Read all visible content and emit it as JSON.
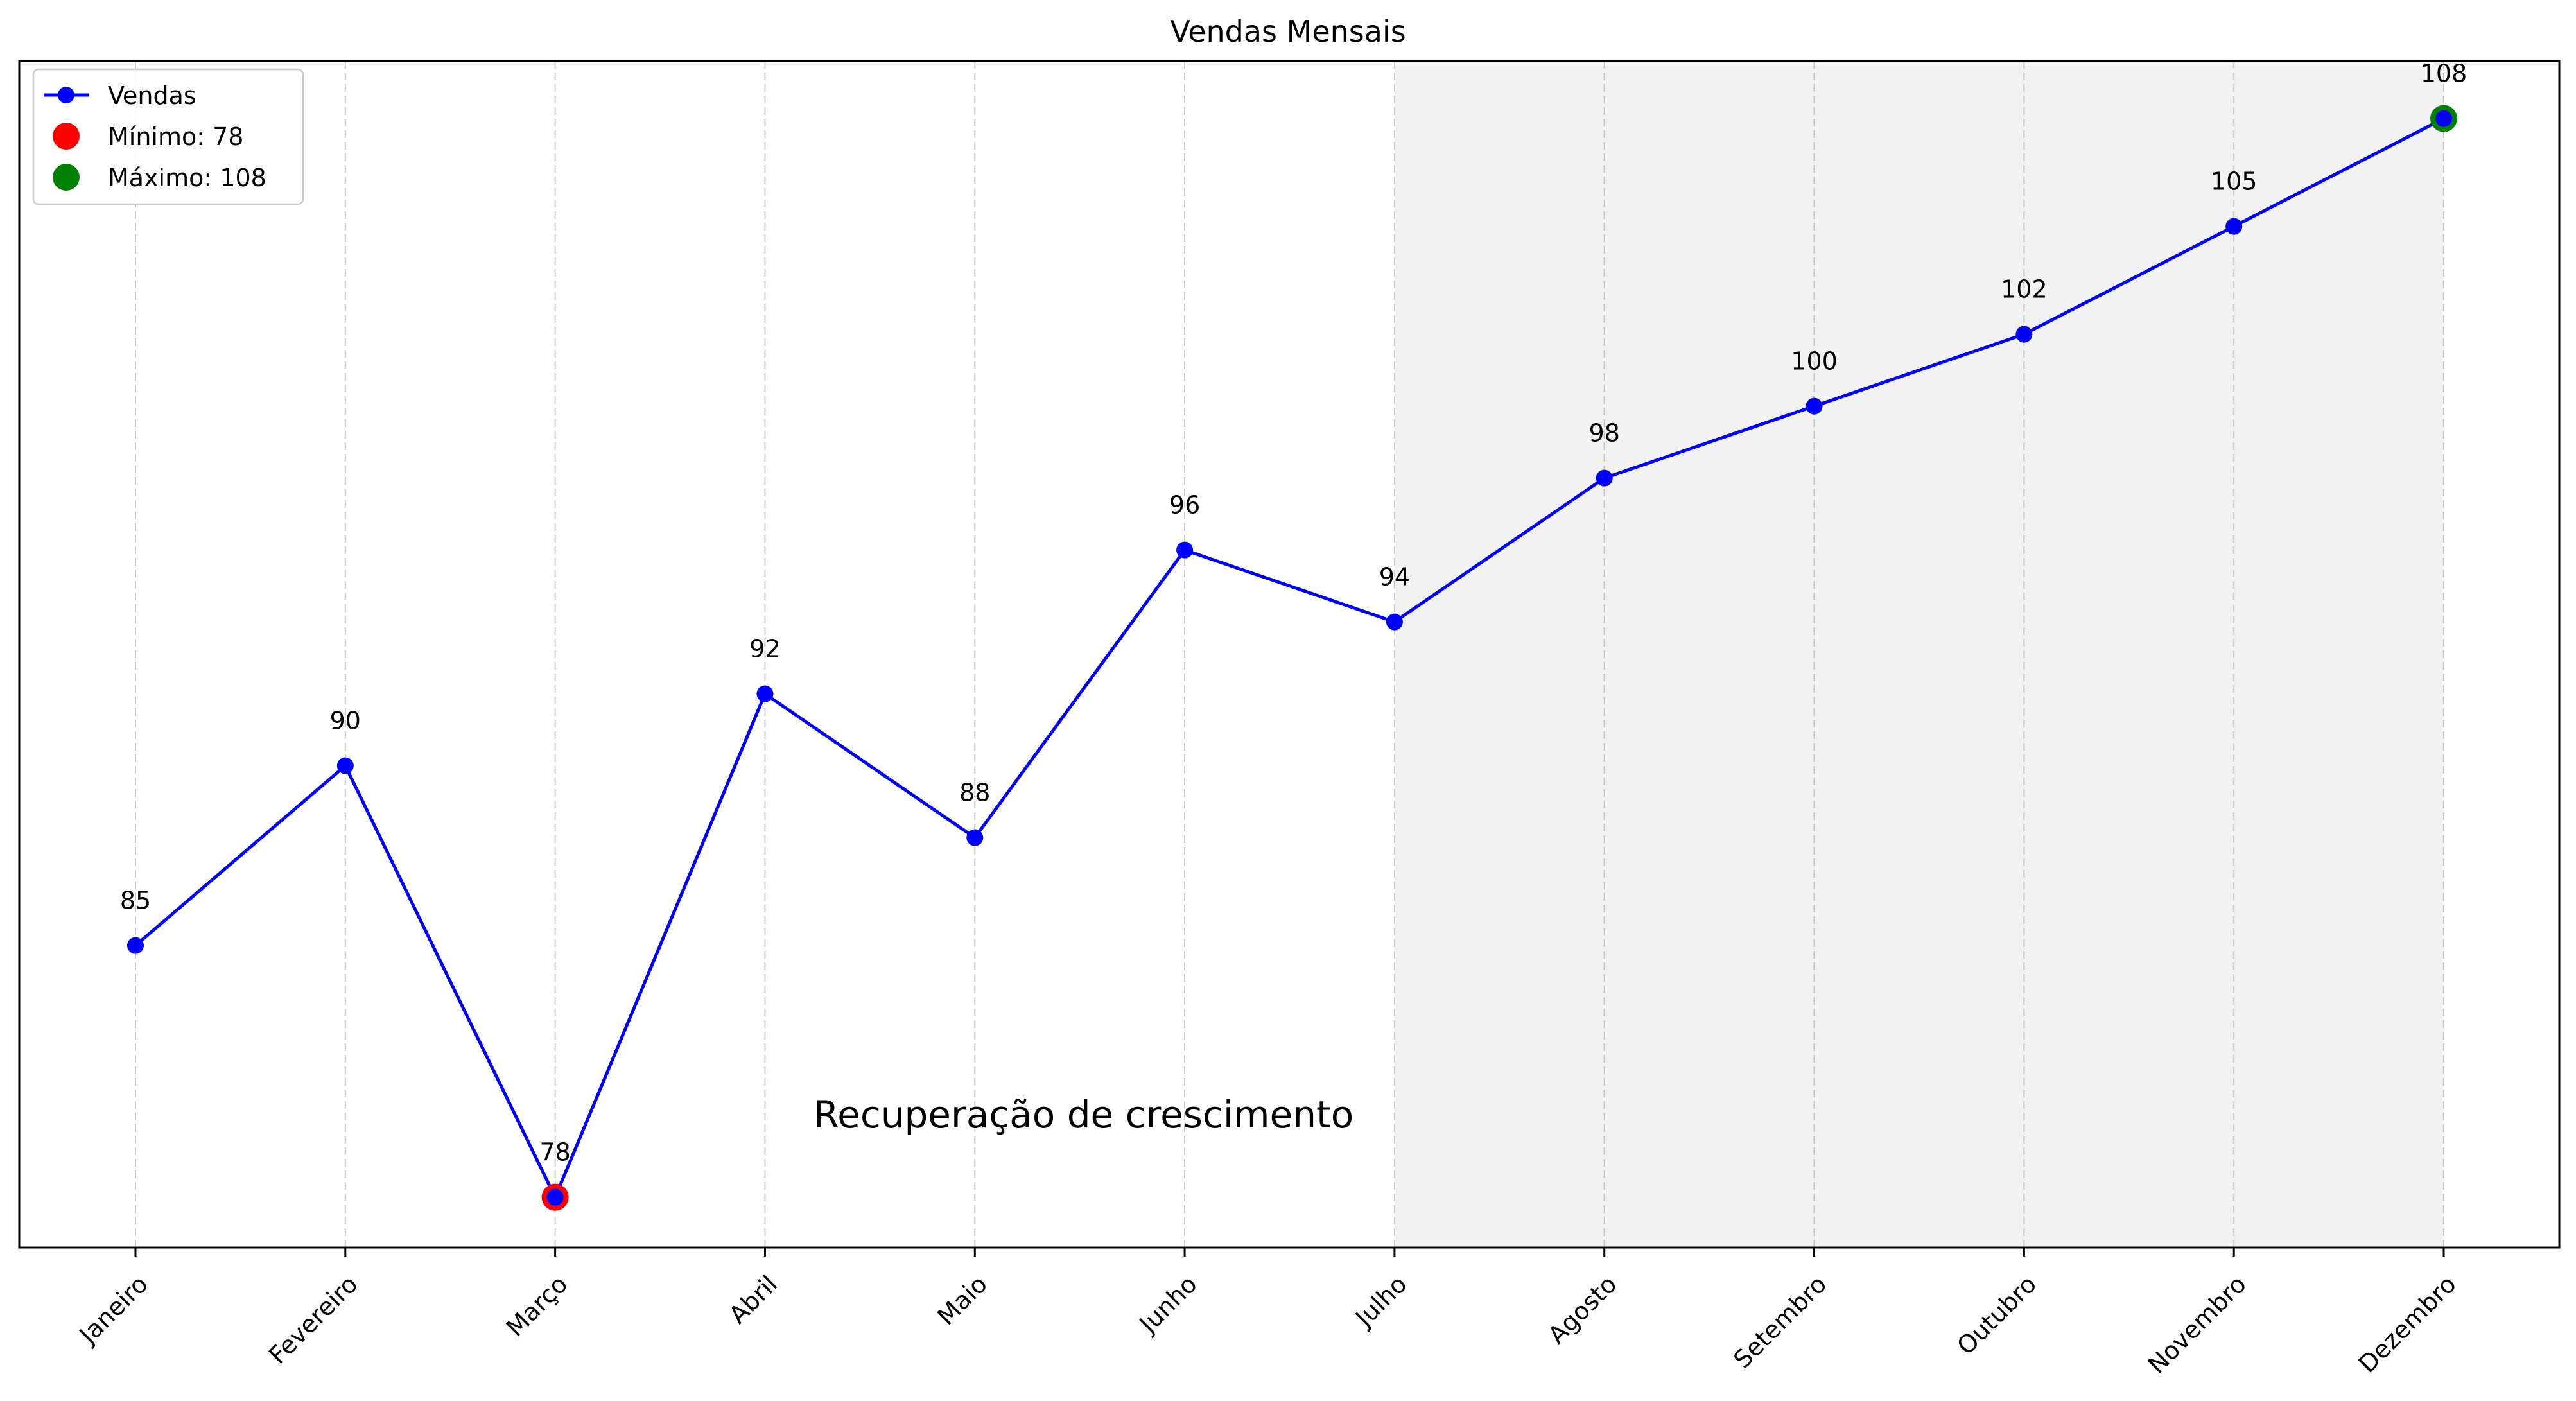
{
  "chart_data": {
    "type": "line",
    "title": "Vendas Mensais",
    "xlabel": "",
    "ylabel": "",
    "categories": [
      "Janeiro",
      "Fevereiro",
      "Março",
      "Abril",
      "Maio",
      "Junho",
      "Julho",
      "Agosto",
      "Setembro",
      "Outubro",
      "Novembro",
      "Dezembro"
    ],
    "series": [
      {
        "name": "Vendas",
        "color": "#0000ff",
        "values": [
          85,
          90,
          78,
          92,
          88,
          96,
          94,
          98,
          100,
          102,
          105,
          108
        ]
      }
    ],
    "data_labels": [
      "85",
      "90",
      "78",
      "92",
      "88",
      "96",
      "94",
      "98",
      "100",
      "102",
      "105",
      "108"
    ],
    "highlights": [
      {
        "name": "Mínimo: 78",
        "category": "Março",
        "value": 78,
        "color": "#ff0000"
      },
      {
        "name": "Máximo: 108",
        "category": "Dezembro",
        "value": 108,
        "color": "#008000"
      }
    ],
    "shaded_region": {
      "from": "Julho",
      "to": "Dezembro",
      "color": "#f2f2f2"
    },
    "annotation": {
      "text": "Recuperação de crescimento",
      "category": "Abril",
      "value": 80.3
    },
    "ylim": [
      76.6,
      109.6
    ],
    "y_ticks_visible": false,
    "grid": {
      "x": true,
      "y": false,
      "style": "dashed"
    },
    "legend": {
      "position": "top-left",
      "entries": [
        "Vendas",
        "Mínimo: 78",
        "Máximo: 108"
      ]
    }
  }
}
